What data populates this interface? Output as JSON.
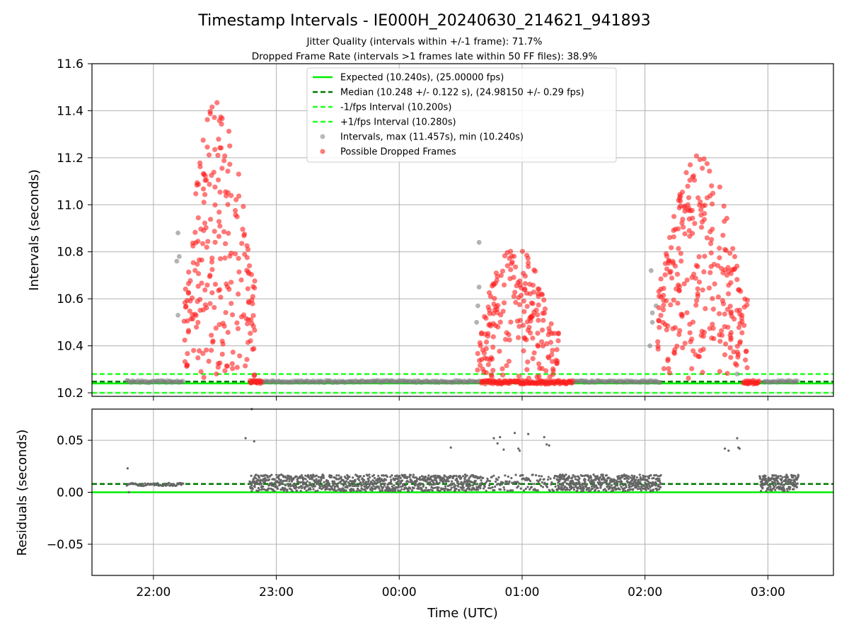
{
  "chart_data": [
    {
      "type": "scatter",
      "title": "Timestamp Intervals - IE000H_20240630_214621_941893",
      "subtitle_lines": [
        "Jitter Quality (intervals within +/-1 frame): 71.7%",
        "Dropped Frame Rate (intervals >1 frames late within 50 FF files): 38.9%"
      ],
      "xlabel": "",
      "ylabel": "Intervals (seconds)",
      "x_time_range": [
        "21:30",
        "03:32"
      ],
      "ylim": [
        10.185,
        11.6
      ],
      "y_ticks": [
        "10.2",
        "10.4",
        "10.6",
        "10.8",
        "11.0",
        "11.2",
        "11.4",
        "11.6"
      ],
      "x_ticks": [
        "22:00",
        "23:00",
        "00:00",
        "01:00",
        "02:00",
        "03:00"
      ],
      "grid": true,
      "legend_position": "upper-center",
      "colors": {
        "expected": "#00ee00",
        "median": "#007a00",
        "interval_bounds": "#22ff22",
        "intervals": "#808080",
        "dropped": "#ff2020"
      },
      "reference_lines": [
        {
          "name": "Expected (10.240s), (25.00000 fps)",
          "y": 10.24,
          "style": "solid"
        },
        {
          "name": "Median (10.248 +/- 0.122 s), (24.98150 +/- 0.29 fps)",
          "y": 10.248,
          "style": "dashed"
        },
        {
          "name": "-1/fps Interval (10.200s)",
          "y": 10.2,
          "style": "dashed"
        },
        {
          "name": "+1/fps Interval (10.280s)",
          "y": 10.28,
          "style": "dashed"
        }
      ],
      "series": [
        {
          "name": "Intervals, max (11.457s), min (10.240s)",
          "kind": "baseline_runs",
          "y": 10.248,
          "runs": [
            [
              "21:47",
              "22:15"
            ],
            [
              "22:48",
              "00:40"
            ],
            [
              "01:25",
              "02:08"
            ],
            [
              "02:58",
              "03:15"
            ]
          ]
        },
        {
          "name": "Possible Dropped Frames",
          "kind": "clusters",
          "clusters": [
            {
              "x_range": [
                "22:15",
                "22:50"
              ],
              "y_range": [
                10.26,
                11.46
              ],
              "count": 230
            },
            {
              "x_range": [
                "00:38",
                "01:18"
              ],
              "y_range": [
                10.26,
                10.82
              ],
              "count": 200
            },
            {
              "x_range": [
                "02:06",
                "02:50"
              ],
              "y_range": [
                10.26,
                11.24
              ],
              "count": 270
            }
          ],
          "baseline_runs": [
            [
              "22:47",
              "22:53"
            ],
            [
              "00:40",
              "01:25"
            ],
            [
              "02:48",
              "02:56"
            ]
          ],
          "y_baseline": 10.245
        }
      ],
      "legend": [
        "Expected (10.240s), (25.00000 fps)",
        "Median (10.248 +/- 0.122 s), (24.98150 +/- 0.29 fps)",
        "-1/fps Interval (10.200s)",
        "+1/fps Interval (10.280s)",
        "Intervals, max (11.457s), min (10.240s)",
        "Possible Dropped Frames"
      ]
    },
    {
      "type": "scatter",
      "xlabel": "Time (UTC)",
      "ylabel": "Residuals (seconds)",
      "x_time_range": [
        "21:30",
        "03:32"
      ],
      "ylim": [
        -0.08,
        0.08
      ],
      "y_ticks": [
        "−0.05",
        "0.00",
        "0.05"
      ],
      "x_ticks": [
        "22:00",
        "23:00",
        "00:00",
        "01:00",
        "02:00",
        "03:00"
      ],
      "grid": true,
      "reference_lines": [
        {
          "name": "Expected",
          "y": 0.0,
          "style": "solid"
        },
        {
          "name": "Median",
          "y": 0.008,
          "style": "dashed"
        }
      ],
      "series": [
        {
          "name": "Residuals",
          "segments": [
            {
              "x_range": [
                "21:47",
                "22:15"
              ],
              "y_range": [
                0.006,
                0.009
              ],
              "count": 60
            },
            {
              "x_range": [
                "22:47",
                "00:40"
              ],
              "y_range": [
                0.001,
                0.017
              ],
              "count": 900
            },
            {
              "x_range": [
                "00:40",
                "01:20"
              ],
              "y_range": [
                0.001,
                0.017
              ],
              "count": 130
            },
            {
              "x_range": [
                "01:17",
                "02:08"
              ],
              "y_range": [
                0.001,
                0.017
              ],
              "count": 450
            },
            {
              "x_range": [
                "02:56",
                "03:15"
              ],
              "y_range": [
                0.001,
                0.017
              ],
              "count": 180
            }
          ],
          "outliers": [
            [
              21.79,
              0.023
            ],
            [
              21.8,
              0.0
            ],
            [
              22.75,
              0.052
            ],
            [
              22.82,
              0.049
            ],
            [
              22.8,
              0.08
            ],
            [
              0.77,
              0.052
            ],
            [
              0.82,
              0.053
            ],
            [
              0.85,
              0.041
            ],
            [
              0.94,
              0.057
            ],
            [
              0.97,
              0.042
            ],
            [
              1.05,
              0.056
            ],
            [
              1.18,
              0.053
            ],
            [
              1.2,
              0.046
            ],
            [
              1.22,
              0.045
            ],
            [
              0.8,
              0.047
            ],
            [
              0.98,
              0.04
            ],
            [
              2.65,
              0.042
            ],
            [
              2.68,
              0.04
            ],
            [
              2.75,
              0.052
            ],
            [
              2.76,
              0.043
            ],
            [
              2.77,
              0.042
            ],
            [
              0.42,
              0.043
            ]
          ]
        }
      ]
    }
  ]
}
